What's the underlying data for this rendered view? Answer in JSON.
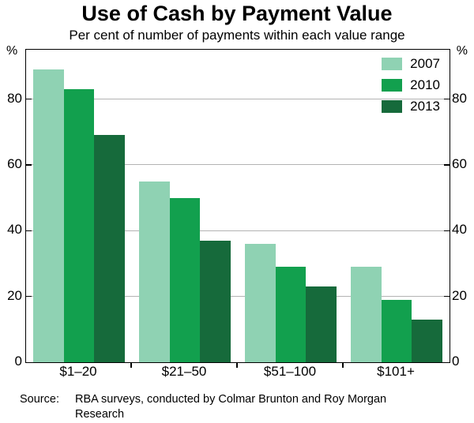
{
  "chart_data": {
    "type": "bar",
    "title": "Use of Cash by Payment Value",
    "subtitle": "Per cent of number of payments within each value range",
    "y_unit": "%",
    "categories": [
      "$1–20",
      "$21–50",
      "$51–100",
      "$101+"
    ],
    "series": [
      {
        "name": "2007",
        "color": "#8fd2b3",
        "values": [
          89,
          55,
          36,
          29
        ]
      },
      {
        "name": "2010",
        "color": "#12a04e",
        "values": [
          83,
          50,
          29,
          19
        ]
      },
      {
        "name": "2013",
        "color": "#166a3b",
        "values": [
          69,
          37,
          23,
          13
        ]
      }
    ],
    "ylim": [
      0,
      95
    ],
    "yticks": [
      0,
      20,
      40,
      60,
      80
    ],
    "grid": true,
    "legend_position": "top-right"
  },
  "source": {
    "label": "Source:",
    "text": "RBA surveys, conducted by Colmar Brunton and Roy Morgan Research"
  }
}
